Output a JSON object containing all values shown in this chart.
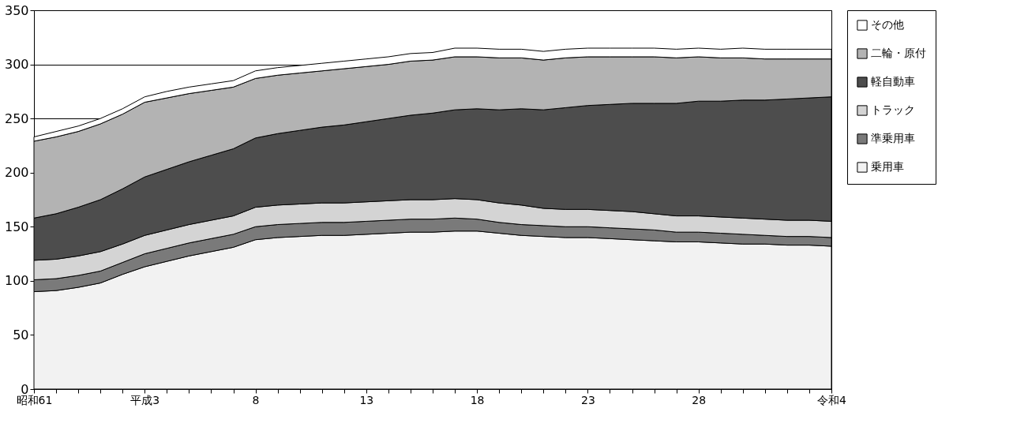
{
  "chart_data": {
    "type": "area",
    "stacked": true,
    "categories": [
      "昭和61",
      null,
      null,
      null,
      null,
      "平成3",
      null,
      null,
      null,
      null,
      "8",
      null,
      null,
      null,
      null,
      "13",
      null,
      null,
      null,
      null,
      "18",
      null,
      null,
      null,
      null,
      "23",
      null,
      null,
      null,
      null,
      "28",
      null,
      null,
      null,
      null,
      null,
      "令和4"
    ],
    "ylim": [
      0,
      350
    ],
    "yticks": [
      0,
      50,
      100,
      150,
      200,
      250,
      300,
      350
    ],
    "grid": "y",
    "legend": "right",
    "series": [
      {
        "name": "乗用車",
        "color": "#f2f2f2",
        "values": [
          90,
          91,
          94,
          98,
          106,
          113,
          118,
          123,
          127,
          131,
          138,
          140,
          141,
          142,
          142,
          143,
          144,
          145,
          145,
          146,
          146,
          144,
          142,
          141,
          140,
          140,
          139,
          138,
          137,
          136,
          136,
          135,
          134,
          134,
          133,
          133,
          132
        ]
      },
      {
        "name": "準乗用車",
        "color": "#7a7a7a",
        "values": [
          11,
          11,
          11,
          11,
          11,
          12,
          12,
          12,
          12,
          12,
          12,
          12,
          12,
          12,
          12,
          12,
          12,
          12,
          12,
          12,
          11,
          10,
          10,
          10,
          10,
          10,
          10,
          10,
          10,
          9,
          9,
          9,
          9,
          8,
          8,
          8,
          8
        ]
      },
      {
        "name": "トラック",
        "color": "#d4d4d4",
        "values": [
          18,
          18,
          18,
          18,
          17,
          17,
          17,
          17,
          17,
          17,
          18,
          18,
          18,
          18,
          18,
          18,
          18,
          18,
          18,
          18,
          18,
          18,
          18,
          16,
          16,
          16,
          16,
          16,
          15,
          15,
          15,
          15,
          15,
          15,
          15,
          15,
          15
        ]
      },
      {
        "name": "軽自動車",
        "color": "#4d4d4d",
        "values": [
          39,
          42,
          45,
          48,
          51,
          54,
          56,
          58,
          60,
          62,
          64,
          66,
          68,
          70,
          72,
          74,
          76,
          78,
          80,
          82,
          84,
          86,
          89,
          91,
          94,
          96,
          98,
          100,
          102,
          104,
          106,
          107,
          109,
          110,
          112,
          113,
          115
        ]
      },
      {
        "name": "二輪・原付",
        "color": "#b3b3b3",
        "values": [
          71,
          71,
          70,
          70,
          69,
          69,
          66,
          63,
          60,
          57,
          55,
          54,
          53,
          52,
          52,
          51,
          50,
          50,
          49,
          49,
          48,
          48,
          47,
          46,
          46,
          45,
          44,
          43,
          43,
          42,
          41,
          40,
          39,
          38,
          37,
          36,
          35
        ]
      },
      {
        "name": "その他",
        "color": "#ffffff",
        "values": [
          4,
          5,
          5,
          5,
          5,
          5,
          6,
          6,
          6,
          6,
          7,
          7,
          7,
          7,
          7,
          7,
          7,
          7,
          7,
          8,
          8,
          8,
          8,
          8,
          8,
          8,
          8,
          8,
          8,
          8,
          8,
          8,
          9,
          9,
          9,
          9,
          9
        ]
      }
    ]
  }
}
